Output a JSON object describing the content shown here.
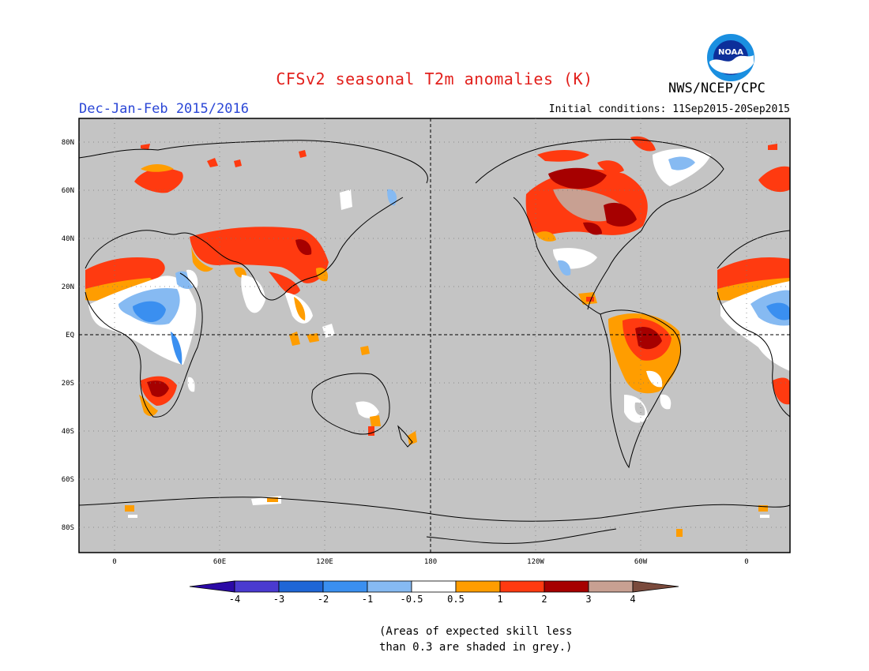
{
  "header": {
    "title": "CFSv2 seasonal T2m anomalies (K)",
    "season": "Dec-Jan-Feb 2015/2016",
    "agency": "NWS/NCEP/CPC",
    "initial_conditions": "Initial conditions: 11Sep2015-20Sep2015",
    "logo_text": "NOAA"
  },
  "map": {
    "lat_labels": [
      "80N",
      "60N",
      "40N",
      "20N",
      "EQ",
      "20S",
      "40S",
      "60S",
      "80S"
    ],
    "lon_labels": [
      "0",
      "60E",
      "120E",
      "180",
      "120W",
      "60W",
      "0"
    ],
    "background_color": "#c4c4c4"
  },
  "colorbar": {
    "labels": [
      "-4",
      "-3",
      "-2",
      "-1",
      "-0.5",
      "0.5",
      "1",
      "2",
      "3",
      "4"
    ],
    "colors": [
      "#2b0aa6",
      "#4a3ad0",
      "#1f66d6",
      "#3a8ff0",
      "#86baf2",
      "#ffffff",
      "#ff9d00",
      "#ff3a10",
      "#a60000",
      "#c8a092",
      "#7a4a3c"
    ]
  },
  "footnote": {
    "line1": "(Areas of expected skill less",
    "line2": "than 0.3 are shaded in grey.)"
  }
}
